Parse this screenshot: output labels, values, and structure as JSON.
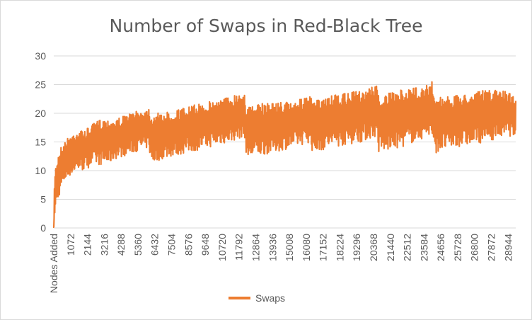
{
  "chart_data": {
    "type": "line",
    "title": "Number of Swaps in Red-Black Tree",
    "xlabel": "",
    "ylabel": "",
    "ylim": [
      0,
      30
    ],
    "yticks": [
      0,
      5,
      10,
      15,
      20,
      25,
      30
    ],
    "x_tick_labels": [
      "Nodes Added",
      "1072",
      "2144",
      "3216",
      "4288",
      "5360",
      "6432",
      "7504",
      "8576",
      "9648",
      "10720",
      "11792",
      "12864",
      "13936",
      "15008",
      "16080",
      "17152",
      "18224",
      "19296",
      "20368",
      "21440",
      "22512",
      "23584",
      "24656",
      "25728",
      "26800",
      "27872",
      "28944"
    ],
    "grid": true,
    "legend_position": "bottom",
    "colors": {
      "series": "#ED7D31",
      "grid": "#D9D9D9",
      "text": "#595959"
    },
    "series": [
      {
        "name": "Swaps",
        "x_range": [
          1,
          30000
        ],
        "bands": [
          {
            "x": 1,
            "min": 0,
            "max": 0
          },
          {
            "x": 60,
            "min": 2,
            "max": 10
          },
          {
            "x": 200,
            "min": 4,
            "max": 12
          },
          {
            "x": 400,
            "min": 6,
            "max": 14
          },
          {
            "x": 700,
            "min": 8,
            "max": 15
          },
          {
            "x": 1000,
            "min": 9,
            "max": 16
          },
          {
            "x": 1500,
            "min": 10,
            "max": 17
          },
          {
            "x": 2000,
            "min": 10,
            "max": 17
          },
          {
            "x": 2500,
            "min": 11,
            "max": 18
          },
          {
            "x": 3000,
            "min": 11,
            "max": 19
          },
          {
            "x": 3500,
            "min": 11,
            "max": 19
          },
          {
            "x": 4000,
            "min": 12,
            "max": 19
          },
          {
            "x": 5000,
            "min": 13,
            "max": 20
          },
          {
            "x": 6200,
            "min": 14,
            "max": 21
          },
          {
            "x": 6300,
            "min": 11,
            "max": 20
          },
          {
            "x": 7000,
            "min": 12,
            "max": 20
          },
          {
            "x": 8500,
            "min": 13,
            "max": 21
          },
          {
            "x": 10000,
            "min": 14,
            "max": 22
          },
          {
            "x": 11500,
            "min": 15,
            "max": 23
          },
          {
            "x": 12400,
            "min": 16,
            "max": 24
          },
          {
            "x": 12500,
            "min": 12,
            "max": 21
          },
          {
            "x": 14000,
            "min": 13,
            "max": 22
          },
          {
            "x": 15500,
            "min": 14,
            "max": 22
          },
          {
            "x": 16700,
            "min": 15,
            "max": 23
          },
          {
            "x": 16800,
            "min": 13,
            "max": 22
          },
          {
            "x": 18000,
            "min": 14,
            "max": 23
          },
          {
            "x": 20000,
            "min": 15,
            "max": 24
          },
          {
            "x": 21000,
            "min": 16,
            "max": 25
          },
          {
            "x": 21100,
            "min": 13,
            "max": 23
          },
          {
            "x": 22500,
            "min": 14,
            "max": 24
          },
          {
            "x": 24400,
            "min": 16,
            "max": 25
          },
          {
            "x": 24550,
            "min": 16,
            "max": 26
          },
          {
            "x": 24650,
            "min": 13,
            "max": 23
          },
          {
            "x": 26000,
            "min": 14,
            "max": 23
          },
          {
            "x": 28000,
            "min": 15,
            "max": 24
          },
          {
            "x": 29300,
            "min": 16,
            "max": 24
          },
          {
            "x": 30000,
            "min": 16,
            "max": 23
          }
        ]
      }
    ]
  }
}
